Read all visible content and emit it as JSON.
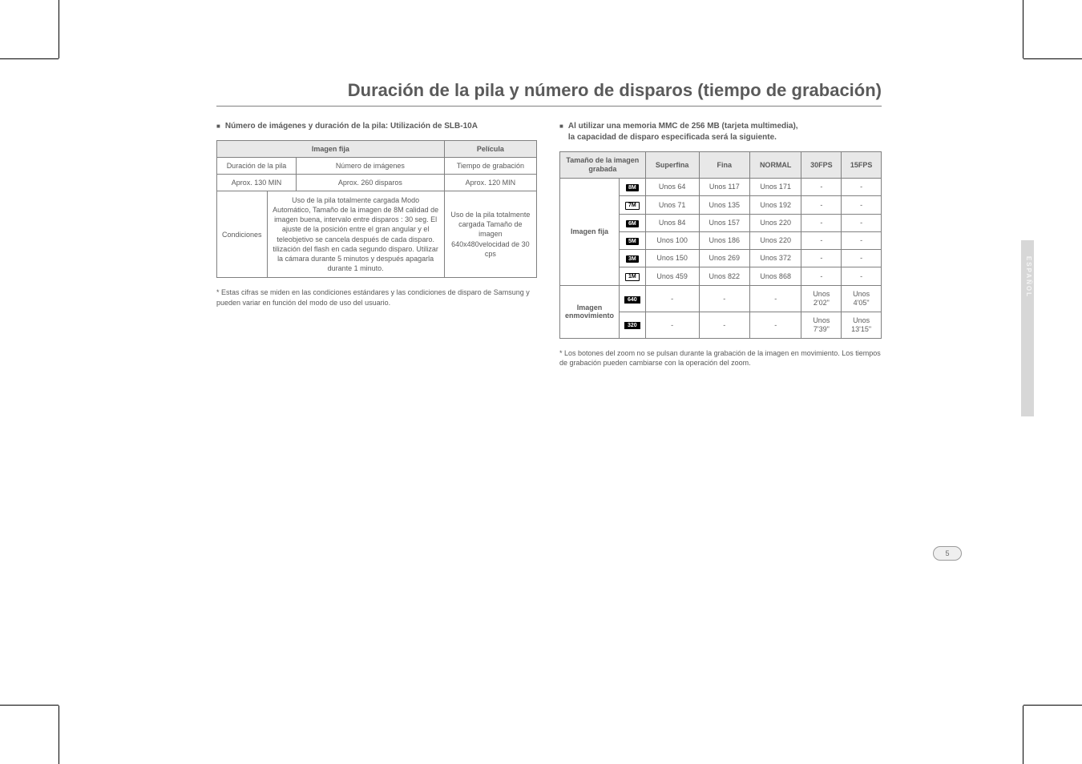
{
  "title": "Duración de la pila y número de disparos (tiempo de grabación)",
  "left": {
    "heading": "Número de imágenes y duración de la pila: Utilización de SLB-10A",
    "table": {
      "h_imagen": "Imagen fija",
      "h_pelicula": "Película",
      "r1_a": "Duración de la pila",
      "r1_b": "Número de imágenes",
      "r1_c": "Tiempo de grabación",
      "r2_a": "Aprox. 130 MIN",
      "r2_b": "Aprox. 260 disparos",
      "r2_c": "Aprox. 120 MIN",
      "r3_label": "Condiciones",
      "r3_cond1": "Uso de la pila totalmente cargada Modo Automático, Tamaño de la imagen de 8M calidad de imagen buena, intervalo entre disparos : 30 seg. El ajuste de la posición entre el gran angular y el teleobjetivo se cancela después de cada disparo. tilización del flash en cada segundo disparo. Utilizar la cámara durante 5 minutos y después apagarla durante 1 minuto.",
      "r3_cond2": "Uso de la pila totalmente cargada Tamaño de imagen 640x480velocidad de 30 cps"
    },
    "footnote": "* Estas cifras se miden en las condiciones estándares y las condiciones de disparo de Samsung y pueden variar en función del modo de uso del usuario."
  },
  "right": {
    "heading_l1": "Al utilizar una memoria MMC de 256 MB (tarjeta multimedia),",
    "heading_l2": "la capacidad de disparo especificada será la siguiente.",
    "headers": {
      "size": "Tamaño de la imagen grabada",
      "superfina": "Superfina",
      "fina": "Fina",
      "normal": "NORMAL",
      "fps30": "30FPS",
      "fps15": "15FPS"
    },
    "group_img": "Imagen fija",
    "group_mov_l1": "Imagen",
    "group_mov_l2": "enmovimiento",
    "rows": [
      {
        "badge": "8M",
        "style": "solid",
        "sf": "Unos 64",
        "f": "Unos 117",
        "n": "Unos 171",
        "f30": "-",
        "f15": "-"
      },
      {
        "badge": "7M",
        "style": "outline",
        "sf": "Unos 71",
        "f": "Unos 135",
        "n": "Unos 192",
        "f30": "-",
        "f15": "-"
      },
      {
        "badge": "6M",
        "style": "solid",
        "sf": "Unos 84",
        "f": "Unos 157",
        "n": "Unos 220",
        "f30": "-",
        "f15": "-"
      },
      {
        "badge": "5M",
        "style": "solid",
        "sf": "Unos 100",
        "f": "Unos 186",
        "n": "Unos 220",
        "f30": "-",
        "f15": "-"
      },
      {
        "badge": "3M",
        "style": "solid",
        "sf": "Unos 150",
        "f": "Unos 269",
        "n": "Unos 372",
        "f30": "-",
        "f15": "-"
      },
      {
        "badge": "1M",
        "style": "outline",
        "sf": "Unos 459",
        "f": "Unos 822",
        "n": "Unos 868",
        "f30": "-",
        "f15": "-"
      }
    ],
    "mrows": [
      {
        "badge": "640",
        "sf": "-",
        "f": "-",
        "n": "-",
        "f30_l1": "Unos",
        "f30_l2": "2'02\"",
        "f15_l1": "Unos",
        "f15_l2": "4'05\""
      },
      {
        "badge": "320",
        "sf": "-",
        "f": "-",
        "n": "-",
        "f30_l1": "Unos",
        "f30_l2": "7'39\"",
        "f15_l1": "Unos",
        "f15_l2": "13'15\""
      }
    ],
    "footnote": "* Los botones del zoom no se pulsan durante la grabación de la imagen en movimiento. Los tiempos de grabación pueden cambiarse con la operación del zoom."
  },
  "side_label": "ESPAÑOL",
  "page_number": "5"
}
